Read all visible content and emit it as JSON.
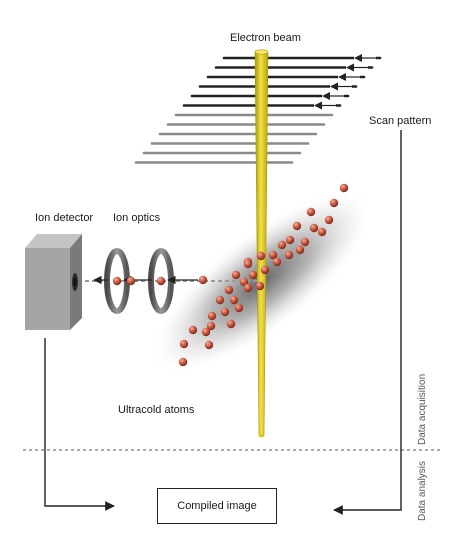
{
  "labels": {
    "electron_beam": "Electron beam",
    "scan_pattern": "Scan pattern",
    "ion_detector": "Ion detector",
    "ion_optics": "Ion optics",
    "ultracold_atoms": "Ultracold atoms",
    "compiled_image": "Compiled image",
    "data_acquisition": "Data acquisition",
    "data_analysis": "Data analysis"
  },
  "colors": {
    "beam": "#e0cc12",
    "beam_edge": "#a89800",
    "atom": "#c8553d",
    "atom_highlight": "#f4b09a",
    "scan_line": "#222222",
    "scan_line_faded": "#8a8a8a",
    "ring": "#6e6e6e",
    "detector": "#9a9a9a",
    "arrow": "#222222",
    "divider": "#555555"
  },
  "icons": {
    "detector": "cube-detector-icon",
    "optics": "ring-lens-icon",
    "atom": "sphere-atom-icon",
    "scan_arrow": "left-arrow-icon"
  }
}
